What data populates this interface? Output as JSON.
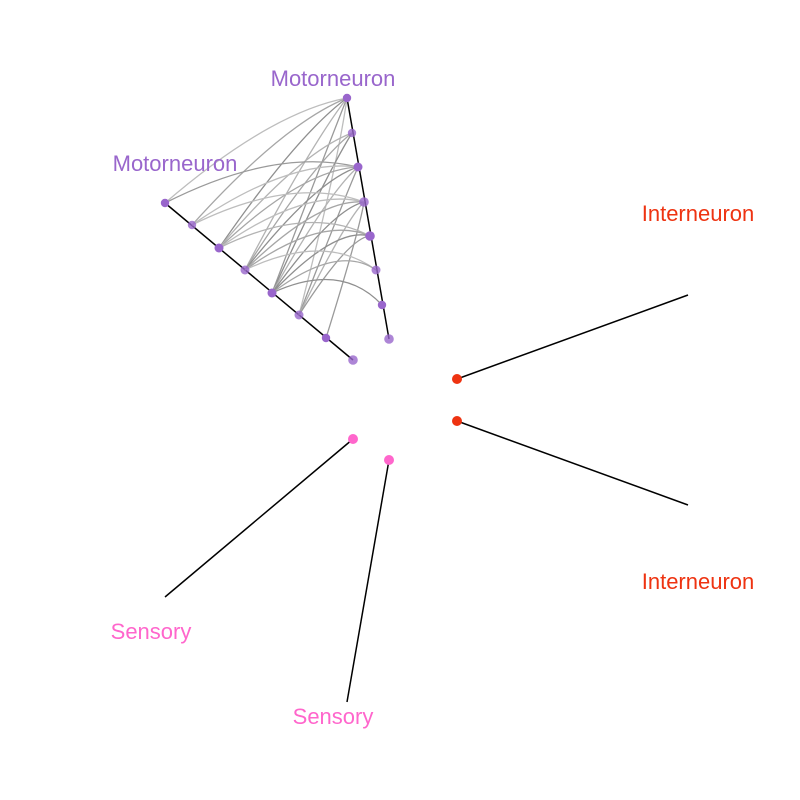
{
  "axes": [
    {
      "id": "motor_a",
      "label": "Motorneuron",
      "color": "#9966cc",
      "node_count": 8
    },
    {
      "id": "motor_b",
      "label": "Motorneuron",
      "color": "#9966cc",
      "node_count": 8
    },
    {
      "id": "inter_a",
      "label": "Interneuron",
      "color": "#ee3311",
      "node_count": 1
    },
    {
      "id": "inter_b",
      "label": "Interneuron",
      "color": "#ee3311",
      "node_count": 1
    },
    {
      "id": "sensory_a",
      "label": "Sensory",
      "color": "#ff66cc",
      "node_count": 1
    },
    {
      "id": "sensory_b",
      "label": "Sensory",
      "color": "#ff66cc",
      "node_count": 1
    }
  ],
  "edges": [
    {
      "from": [
        0,
        0
      ],
      "to": [
        1,
        0
      ]
    },
    {
      "from": [
        0,
        0
      ],
      "to": [
        1,
        1
      ]
    },
    {
      "from": [
        0,
        0
      ],
      "to": [
        1,
        2
      ]
    },
    {
      "from": [
        0,
        0
      ],
      "to": [
        1,
        3
      ]
    },
    {
      "from": [
        0,
        0
      ],
      "to": [
        1,
        4
      ]
    },
    {
      "from": [
        0,
        0
      ],
      "to": [
        1,
        5
      ]
    },
    {
      "from": [
        0,
        1
      ],
      "to": [
        1,
        3
      ]
    },
    {
      "from": [
        0,
        1
      ],
      "to": [
        1,
        4
      ]
    },
    {
      "from": [
        0,
        1
      ],
      "to": [
        1,
        2
      ]
    },
    {
      "from": [
        0,
        2
      ],
      "to": [
        1,
        0
      ]
    },
    {
      "from": [
        0,
        2
      ],
      "to": [
        1,
        1
      ]
    },
    {
      "from": [
        0,
        2
      ],
      "to": [
        1,
        2
      ]
    },
    {
      "from": [
        0,
        2
      ],
      "to": [
        1,
        3
      ]
    },
    {
      "from": [
        0,
        2
      ],
      "to": [
        1,
        4
      ]
    },
    {
      "from": [
        0,
        2
      ],
      "to": [
        1,
        5
      ]
    },
    {
      "from": [
        0,
        3
      ],
      "to": [
        1,
        2
      ]
    },
    {
      "from": [
        0,
        3
      ],
      "to": [
        1,
        3
      ]
    },
    {
      "from": [
        0,
        3
      ],
      "to": [
        1,
        4
      ]
    },
    {
      "from": [
        0,
        3
      ],
      "to": [
        1,
        5
      ]
    },
    {
      "from": [
        0,
        3
      ],
      "to": [
        1,
        6
      ]
    },
    {
      "from": [
        0,
        3
      ],
      "to": [
        1,
        1
      ]
    },
    {
      "from": [
        0,
        4
      ],
      "to": [
        1,
        3
      ]
    },
    {
      "from": [
        0,
        4
      ],
      "to": [
        1,
        4
      ]
    },
    {
      "from": [
        0,
        4
      ],
      "to": [
        1,
        2
      ]
    },
    {
      "from": [
        0,
        4
      ],
      "to": [
        1,
        5
      ]
    },
    {
      "from": [
        0,
        5
      ],
      "to": [
        1,
        3
      ]
    },
    {
      "from": [
        0,
        5
      ],
      "to": [
        1,
        4
      ]
    },
    {
      "from": [
        0,
        6
      ],
      "to": [
        1,
        4
      ]
    }
  ]
}
